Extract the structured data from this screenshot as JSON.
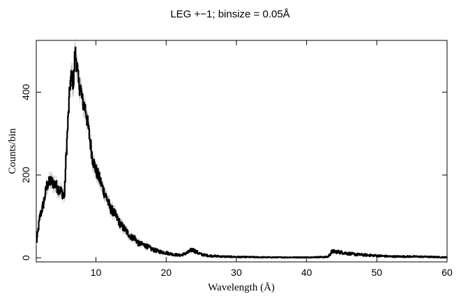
{
  "chart_data": {
    "type": "line",
    "title": "LEG +−1; binsize = 0.05Å",
    "xlabel": "Wavelength (Å)",
    "ylabel": "Counts/bin",
    "xlim": [
      1.5,
      60
    ],
    "ylim": [
      -10,
      525
    ],
    "x_ticks": [
      10,
      20,
      30,
      40,
      50,
      60
    ],
    "x_tick_labels": [
      "10",
      "20",
      "30",
      "40",
      "50",
      "60"
    ],
    "y_ticks": [
      0,
      200,
      400
    ],
    "y_tick_labels": [
      "0",
      "200",
      "400"
    ],
    "grid": false,
    "legend": "none",
    "series": [
      {
        "color": "#000000",
        "x": [
          1.5,
          2.0,
          2.5,
          3.0,
          3.5,
          4.0,
          4.5,
          5.0,
          5.5,
          5.7,
          6.0,
          6.3,
          6.5,
          6.8,
          7.0,
          7.3,
          7.5,
          7.8,
          8.0,
          8.5,
          9.0,
          9.5,
          10.0,
          10.5,
          11.0,
          11.5,
          12.0,
          12.5,
          13.0,
          13.5,
          14.0,
          14.5,
          15.0,
          15.5,
          16.0,
          17.0,
          18.0,
          19.0,
          20.0,
          21.0,
          22.0,
          23.0,
          23.7,
          24.5,
          25.0,
          26.0,
          28.0,
          30.0,
          35.0,
          40.0,
          43.0,
          43.6,
          44.0,
          45.0,
          46.0,
          47.0,
          48.0,
          50.0,
          52.0,
          55.0,
          58.0,
          60.0
        ],
        "y": [
          35,
          100,
          130,
          175,
          185,
          180,
          170,
          160,
          150,
          235,
          330,
          420,
          440,
          420,
          500,
          460,
          420,
          410,
          380,
          360,
          300,
          240,
          210,
          190,
          165,
          145,
          120,
          110,
          95,
          80,
          70,
          60,
          50,
          48,
          35,
          30,
          20,
          15,
          12,
          8,
          6,
          12,
          20,
          12,
          8,
          5,
          3,
          2,
          1,
          1,
          2,
          15,
          15,
          13,
          10,
          8,
          7,
          5,
          3,
          3,
          2,
          1
        ]
      }
    ]
  }
}
